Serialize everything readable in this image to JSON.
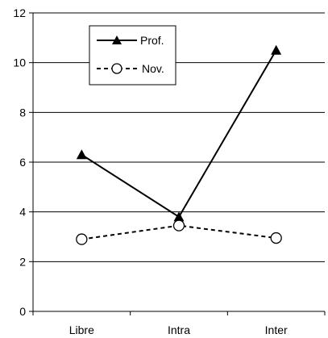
{
  "chart_data": {
    "type": "line",
    "categories": [
      "Libre",
      "Intra",
      "Inter"
    ],
    "series": [
      {
        "name": "Prof.",
        "values": [
          6.3,
          3.8,
          10.5
        ],
        "line_style": "solid",
        "marker": "filled-triangle",
        "color": "#000000"
      },
      {
        "name": "Nov.",
        "values": [
          2.9,
          3.45,
          2.95
        ],
        "line_style": "dashed",
        "marker": "open-circle",
        "color": "#000000"
      }
    ],
    "yticks": [
      "0",
      "2",
      "4",
      "6",
      "8",
      "10",
      "12"
    ],
    "ylim": [
      0,
      12
    ],
    "grid": "horizontal",
    "legend_position": "top-left"
  }
}
